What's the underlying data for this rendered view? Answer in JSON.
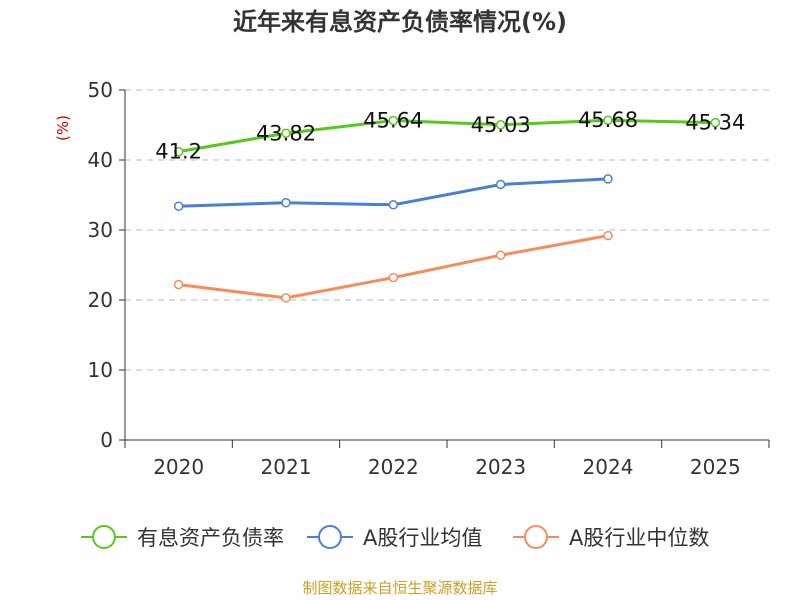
{
  "chart_data": {
    "type": "line",
    "title": "近年来有息资产负债率情况(%)",
    "ylabel": "(%)",
    "xlabel": "",
    "categories": [
      "2020",
      "2021",
      "2022",
      "2023",
      "2024",
      "2025"
    ],
    "ylim": [
      0,
      50
    ],
    "yticks": [
      "0",
      "10",
      "20",
      "30",
      "40",
      "50"
    ],
    "grid": true,
    "legend_position": "bottom",
    "series": [
      {
        "name": "有息资产负债率",
        "color": "#5ac71e",
        "values": [
          41.2,
          43.82,
          45.64,
          45.03,
          45.68,
          45.34
        ],
        "labels": [
          "41.2",
          "43.82",
          "45.64",
          "45.03",
          "45.68",
          "45.34"
        ],
        "show_labels": true
      },
      {
        "name": "A股行业均值",
        "color": "#4a7fd4",
        "values": [
          33.4,
          33.9,
          33.6,
          36.5,
          37.3,
          null
        ],
        "labels": [],
        "show_labels": false
      },
      {
        "name": "A股行业中位数",
        "color": "#f78c5a",
        "values": [
          22.2,
          20.3,
          23.2,
          26.4,
          29.2,
          null
        ],
        "labels": [],
        "show_labels": false
      }
    ]
  },
  "footer": {
    "source": "制图数据来自恒生聚源数据库",
    "source_color": "#c9a227"
  },
  "colors": {
    "axis": "#333333",
    "grid": "#bbbbbb",
    "ylabel": "#cc0000"
  }
}
